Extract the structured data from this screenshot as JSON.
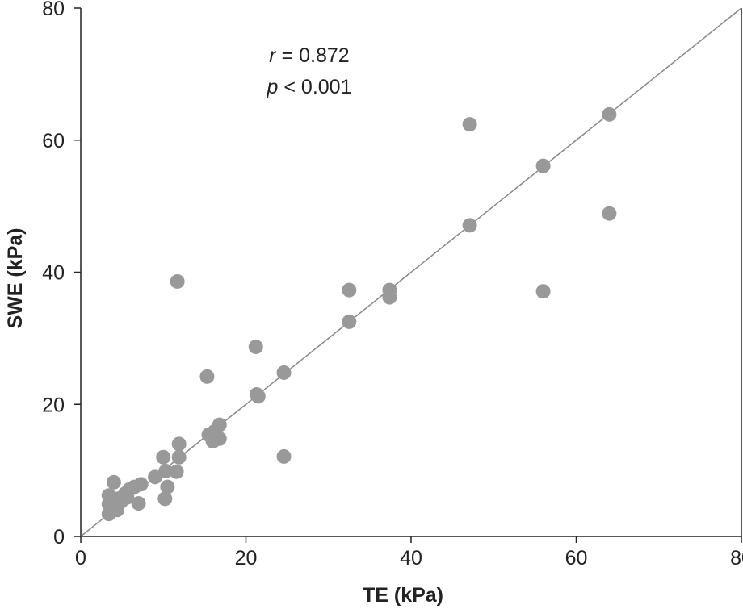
{
  "chart_data": {
    "type": "scatter",
    "x_label": "TE (kPa)",
    "y_label": "SWE (kPa)",
    "annotations": [
      {
        "symbol": "r",
        "text": " = 0.872"
      },
      {
        "symbol": "p",
        "text": " < 0.001"
      }
    ],
    "series": [
      {
        "name": null,
        "color": "#999999",
        "x": [
          47.1,
          64.0,
          56.0,
          47.1,
          64.0,
          56.0,
          32.5,
          37.4,
          37.4,
          32.5,
          11.7,
          21.2,
          24.6,
          15.3,
          21.3,
          21.5,
          24.6,
          16.8,
          16.8,
          15.5,
          16.0,
          16.2,
          11.9,
          11.9,
          11.6,
          10.0,
          10.3,
          10.5,
          10.2,
          9.0,
          7.3,
          6.5,
          5.9,
          5.6,
          7.0,
          4.0,
          3.4,
          3.4,
          3.4,
          4.5,
          4.2,
          4.9,
          5.4,
          4.4
        ],
        "values": [
          62.4,
          63.9,
          56.1,
          47.1,
          48.9,
          37.1,
          37.3,
          37.3,
          36.2,
          32.5,
          38.6,
          28.7,
          24.8,
          24.2,
          21.5,
          21.2,
          12.1,
          16.9,
          14.8,
          15.4,
          14.4,
          15.9,
          14.0,
          12.0,
          9.8,
          12.0,
          9.9,
          7.5,
          5.7,
          9.0,
          7.9,
          7.5,
          7.1,
          5.9,
          5.0,
          8.2,
          6.2,
          4.9,
          3.4,
          5.7,
          4.6,
          5.3,
          6.5,
          4.0
        ]
      }
    ],
    "reference_line": {
      "color": "#888888",
      "x": [
        0,
        80
      ],
      "y": [
        0,
        80
      ]
    },
    "xlim": [
      0,
      80
    ],
    "xticks": [
      0,
      20,
      40,
      60,
      80
    ],
    "ylim": [
      0,
      80
    ],
    "yticks": [
      0,
      20,
      40,
      60,
      80
    ]
  }
}
